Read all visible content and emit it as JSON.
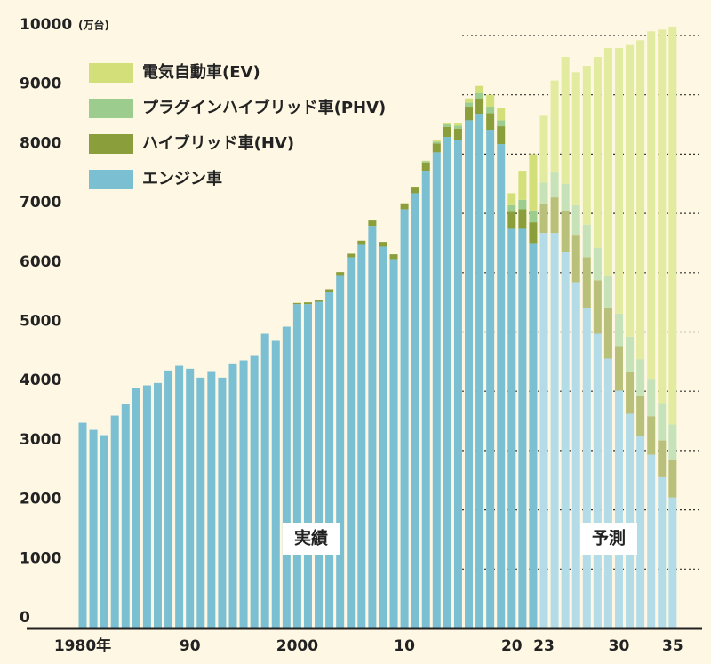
{
  "chart_data": {
    "type": "stacked_bar",
    "y_unit": "(万台)",
    "categories": [
      "1980年",
      null,
      null,
      null,
      null,
      null,
      null,
      null,
      null,
      null,
      "90",
      null,
      null,
      null,
      null,
      null,
      null,
      null,
      null,
      null,
      "2000",
      null,
      null,
      null,
      null,
      null,
      null,
      null,
      null,
      null,
      "10",
      null,
      null,
      null,
      null,
      null,
      null,
      null,
      null,
      null,
      "20",
      null,
      null,
      "23",
      null,
      null,
      null,
      null,
      null,
      null,
      "30",
      null,
      null,
      null,
      null,
      "35"
    ],
    "forecast_start": "23",
    "series": [
      {
        "name": "エンジン車",
        "color": "#7bbfd3",
        "forecast_color": "#b3dce8",
        "values": [
          3470,
          3350,
          3260,
          3590,
          3780,
          4050,
          4100,
          4140,
          4350,
          4430,
          4380,
          4230,
          4340,
          4230,
          4470,
          4520,
          4610,
          4970,
          4850,
          5090,
          5470,
          5470,
          5510,
          5680,
          5960,
          6260,
          6470,
          6790,
          6440,
          6230,
          7070,
          7340,
          7720,
          8030,
          8290,
          8240,
          8570,
          8680,
          8410,
          8170,
          6740,
          6740,
          6500,
          6670,
          6670,
          6350,
          5840,
          5410,
          4970,
          4550,
          4010,
          3620,
          3240,
          2930,
          2550,
          2210
        ]
      },
      {
        "name": "ハイブリッド車(HV)",
        "color": "#8b9e3c",
        "forecast_color": "#b9c07a",
        "values": [
          0,
          0,
          0,
          0,
          0,
          0,
          0,
          0,
          0,
          0,
          0,
          0,
          0,
          0,
          0,
          0,
          0,
          0,
          0,
          0,
          20,
          30,
          30,
          40,
          50,
          60,
          70,
          90,
          80,
          80,
          100,
          110,
          140,
          150,
          170,
          190,
          230,
          260,
          280,
          300,
          300,
          330,
          350,
          500,
          600,
          700,
          800,
          850,
          900,
          850,
          750,
          700,
          680,
          650,
          620,
          630
        ]
      },
      {
        "name": "プラグインハイブリッド車(PHV)",
        "color": "#9ccc8e",
        "forecast_color": "#c6e2b8",
        "values": [
          0,
          0,
          0,
          0,
          0,
          0,
          0,
          0,
          0,
          0,
          0,
          0,
          0,
          0,
          0,
          0,
          0,
          0,
          0,
          0,
          0,
          0,
          0,
          0,
          0,
          0,
          0,
          0,
          0,
          0,
          0,
          0,
          20,
          30,
          40,
          50,
          70,
          90,
          110,
          100,
          100,
          160,
          200,
          350,
          420,
          450,
          500,
          550,
          550,
          550,
          550,
          600,
          620,
          630,
          630,
          600
        ]
      },
      {
        "name": "電気自動車(EV)",
        "color": "#d3e07a",
        "forecast_color": "#e2eb9f",
        "values": [
          0,
          0,
          0,
          0,
          0,
          0,
          0,
          0,
          0,
          0,
          0,
          0,
          0,
          0,
          0,
          0,
          0,
          0,
          0,
          0,
          0,
          0,
          0,
          0,
          0,
          0,
          0,
          0,
          0,
          0,
          0,
          0,
          10,
          20,
          30,
          50,
          70,
          120,
          200,
          200,
          200,
          490,
          950,
          1140,
          1550,
          2140,
          2240,
          2680,
          3220,
          3840,
          4480,
          4920,
          5380,
          5860,
          6300,
          6710
        ]
      }
    ],
    "annotations": [
      {
        "text": "実績"
      },
      {
        "text": "予測"
      }
    ],
    "ylim": [
      0,
      10000
    ],
    "yticks": [
      0,
      1000,
      2000,
      3000,
      4000,
      5000,
      6000,
      7000,
      8000,
      9000,
      10000
    ],
    "grid": true,
    "legend": "upper left"
  }
}
